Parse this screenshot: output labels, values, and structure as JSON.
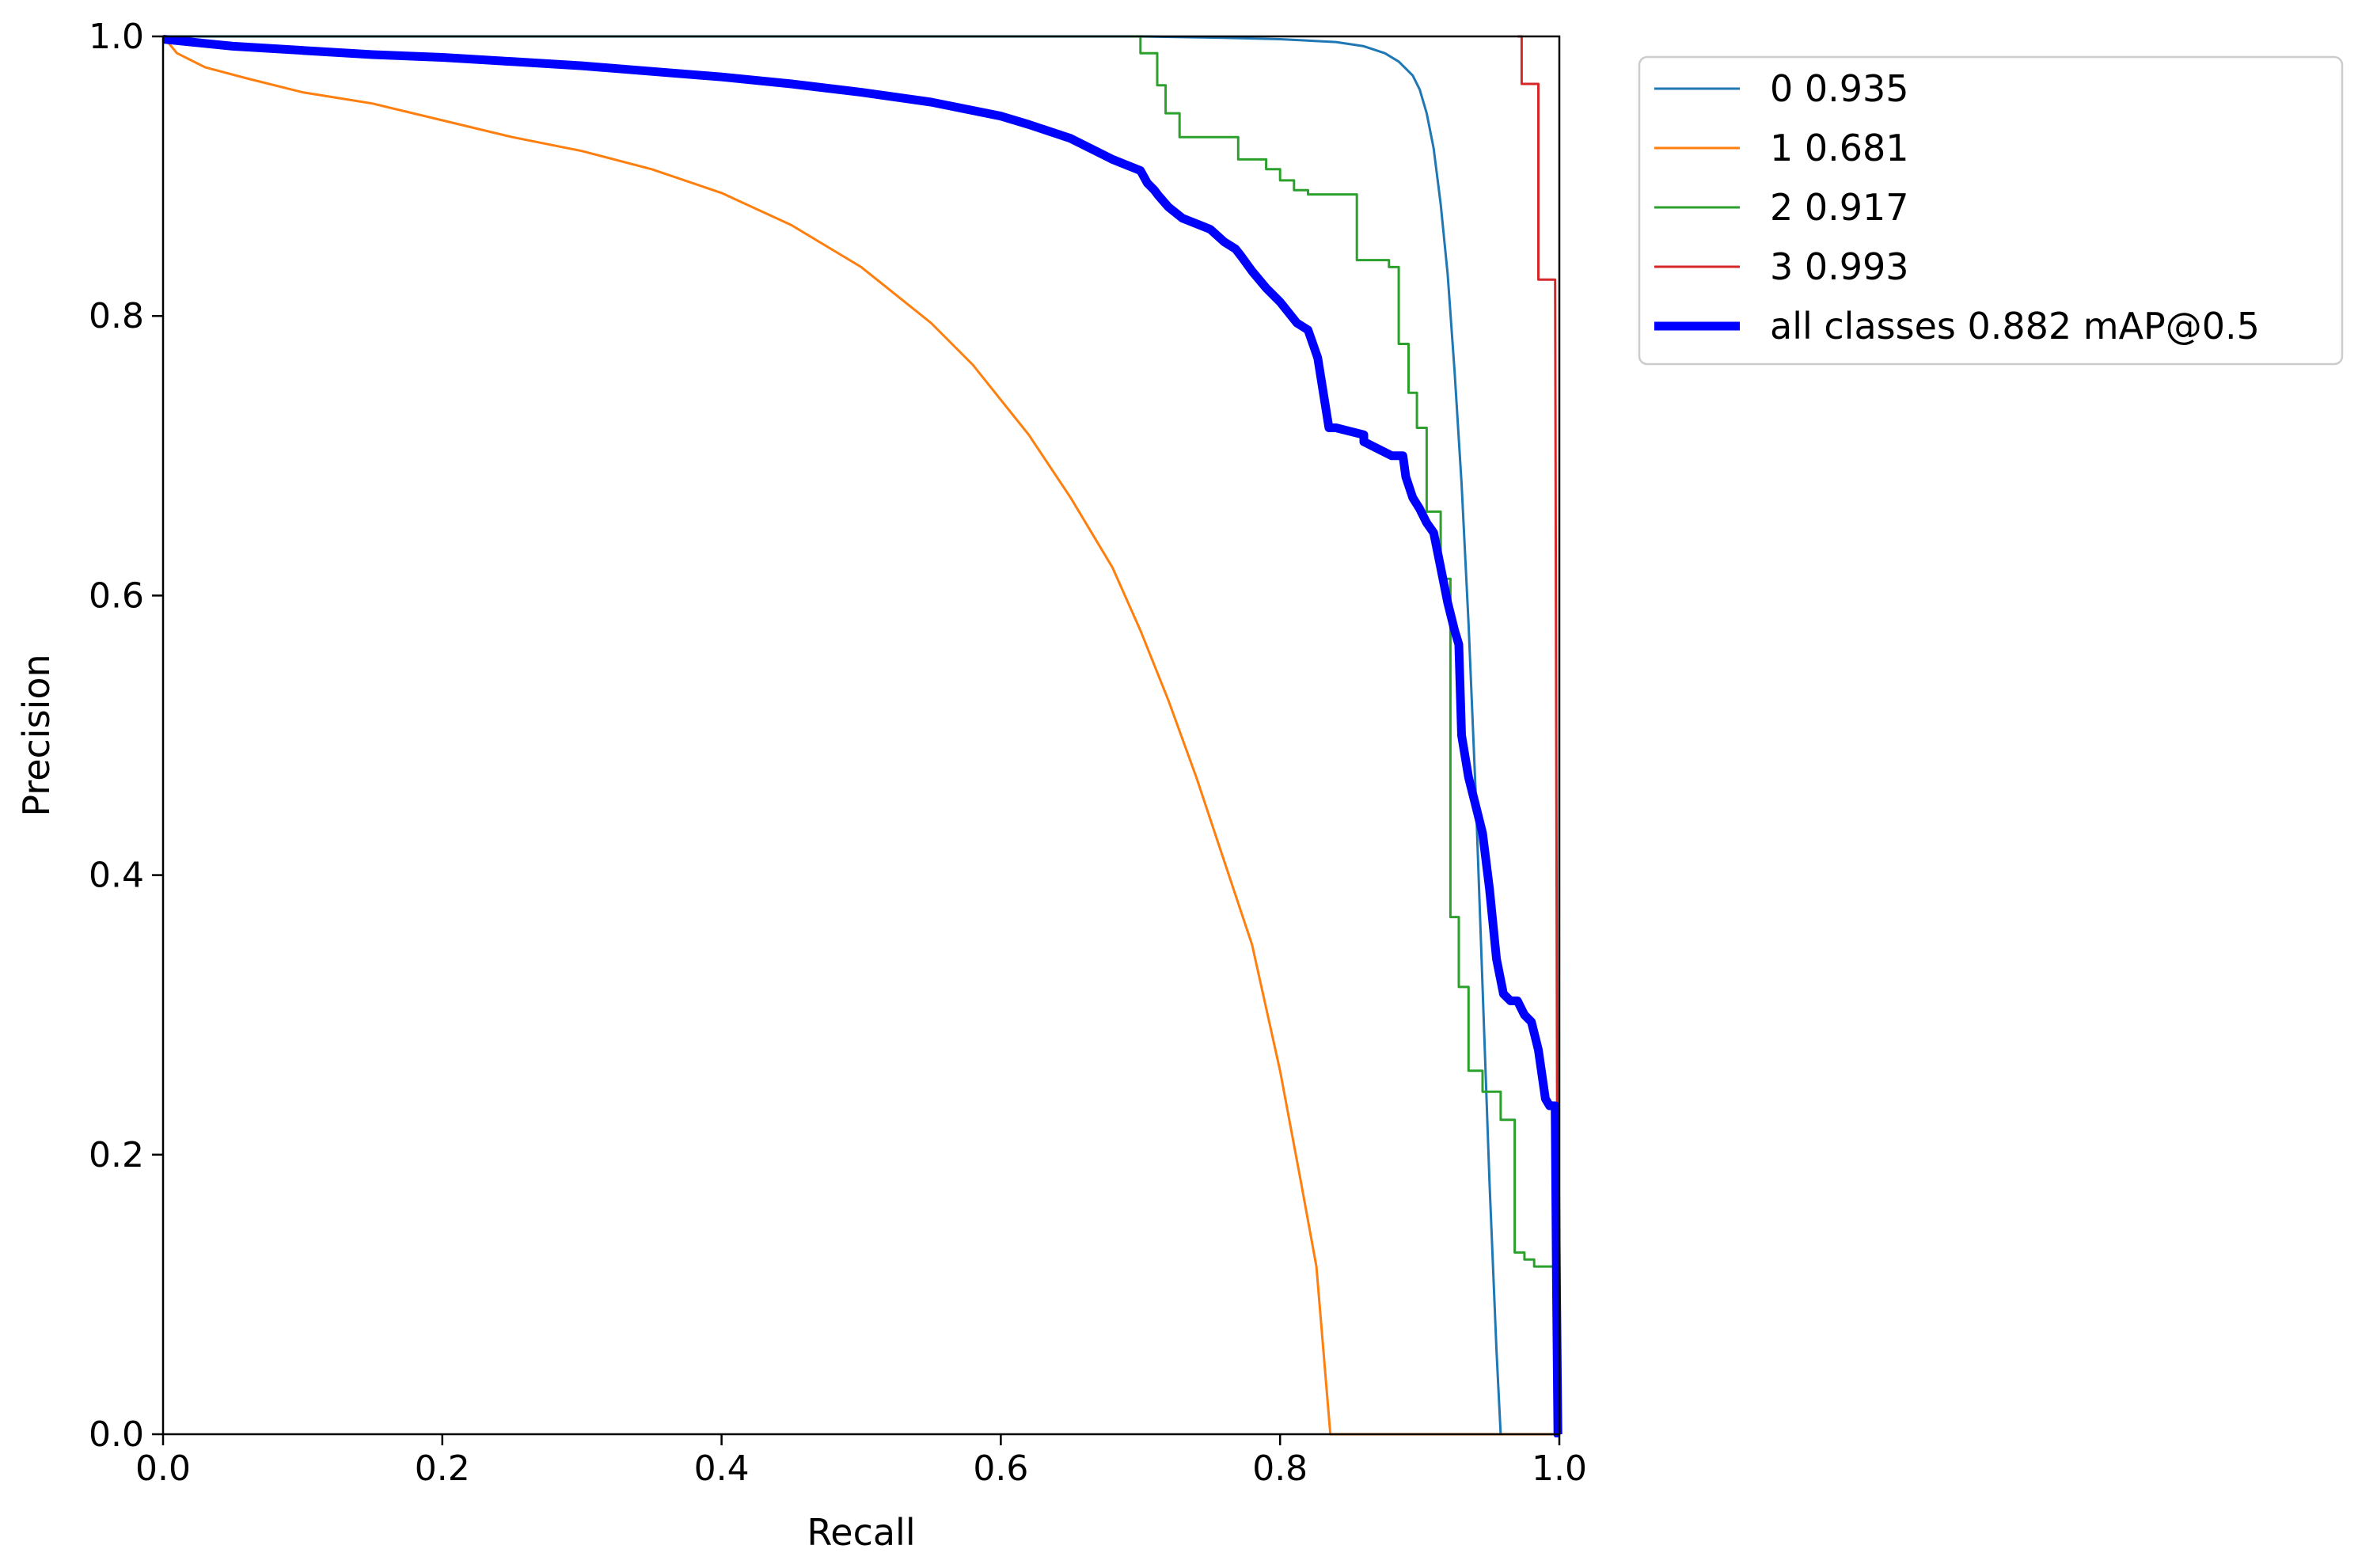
{
  "chart_data": {
    "type": "line",
    "title": "",
    "xlabel": "Recall",
    "ylabel": "Precision",
    "xlim": [
      0,
      1
    ],
    "ylim": [
      0,
      1
    ],
    "x_ticks": [
      "0.0",
      "0.2",
      "0.4",
      "0.6",
      "0.8",
      "1.0"
    ],
    "y_ticks": [
      "0.0",
      "0.2",
      "0.4",
      "0.6",
      "0.8",
      "1.0"
    ],
    "grid": false,
    "legend_position": "outside-top-right",
    "series": [
      {
        "name": "0 0.935",
        "color": "#1f77b4",
        "thick": false,
        "x": [
          0.0,
          0.7,
          0.76,
          0.8,
          0.84,
          0.86,
          0.875,
          0.885,
          0.895,
          0.9,
          0.905,
          0.91,
          0.915,
          0.92,
          0.925,
          0.93,
          0.935,
          0.94,
          0.945,
          0.95,
          0.955,
          0.958,
          0.958,
          1.0
        ],
        "y": [
          1.0,
          1.0,
          0.999,
          0.998,
          0.996,
          0.993,
          0.988,
          0.982,
          0.972,
          0.962,
          0.945,
          0.92,
          0.88,
          0.83,
          0.76,
          0.68,
          0.58,
          0.46,
          0.32,
          0.18,
          0.06,
          0.0,
          0.0,
          0.0
        ]
      },
      {
        "name": "1 0.681",
        "color": "#ff7f0e",
        "thick": false,
        "x": [
          0.0,
          0.01,
          0.03,
          0.06,
          0.1,
          0.15,
          0.2,
          0.25,
          0.3,
          0.35,
          0.4,
          0.45,
          0.5,
          0.55,
          0.58,
          0.6,
          0.62,
          0.65,
          0.68,
          0.7,
          0.72,
          0.74,
          0.76,
          0.78,
          0.8,
          0.815,
          0.826,
          0.836,
          0.836,
          1.0
        ],
        "y": [
          1.0,
          0.988,
          0.978,
          0.97,
          0.96,
          0.952,
          0.94,
          0.928,
          0.918,
          0.905,
          0.888,
          0.865,
          0.835,
          0.795,
          0.765,
          0.74,
          0.715,
          0.67,
          0.62,
          0.575,
          0.525,
          0.47,
          0.41,
          0.35,
          0.26,
          0.18,
          0.12,
          0.0,
          0.0,
          0.0
        ]
      },
      {
        "name": "2 0.917",
        "color": "#2ca02c",
        "thick": false,
        "x": [
          0.693,
          0.7,
          0.7,
          0.712,
          0.712,
          0.718,
          0.718,
          0.728,
          0.728,
          0.77,
          0.77,
          0.79,
          0.79,
          0.8,
          0.8,
          0.81,
          0.81,
          0.82,
          0.82,
          0.855,
          0.855,
          0.878,
          0.878,
          0.885,
          0.885,
          0.892,
          0.892,
          0.898,
          0.898,
          0.905,
          0.905,
          0.915,
          0.915,
          0.922,
          0.922,
          0.928,
          0.928,
          0.935,
          0.935,
          0.945,
          0.945,
          0.958,
          0.958,
          0.968,
          0.968,
          0.975,
          0.975,
          0.982,
          0.982,
          0.99,
          0.99,
          0.997,
          0.997
        ],
        "y": [
          1.0,
          1.0,
          0.988,
          0.988,
          0.965,
          0.965,
          0.945,
          0.945,
          0.928,
          0.928,
          0.912,
          0.912,
          0.905,
          0.905,
          0.897,
          0.897,
          0.89,
          0.89,
          0.887,
          0.887,
          0.84,
          0.84,
          0.835,
          0.835,
          0.78,
          0.78,
          0.745,
          0.745,
          0.72,
          0.72,
          0.66,
          0.66,
          0.612,
          0.612,
          0.37,
          0.37,
          0.32,
          0.32,
          0.26,
          0.26,
          0.245,
          0.245,
          0.225,
          0.225,
          0.13,
          0.13,
          0.125,
          0.125,
          0.12,
          0.12,
          0.12,
          0.12,
          0.0
        ]
      },
      {
        "name": "3 0.993",
        "color": "#d62728",
        "thick": false,
        "x": [
          0.97,
          0.97,
          0.973,
          0.973,
          0.985,
          0.985,
          0.997,
          0.997,
          0.999
        ],
        "y": [
          1.0,
          1.0,
          1.0,
          0.966,
          0.966,
          0.826,
          0.826,
          0.826,
          0.0
        ]
      },
      {
        "name": "all classes 0.882 mAP@0.5",
        "color": "#0000ff",
        "thick": true,
        "x": [
          0.0,
          0.05,
          0.1,
          0.15,
          0.2,
          0.25,
          0.3,
          0.35,
          0.4,
          0.45,
          0.5,
          0.55,
          0.6,
          0.62,
          0.65,
          0.68,
          0.69,
          0.7,
          0.705,
          0.71,
          0.713,
          0.72,
          0.73,
          0.75,
          0.76,
          0.768,
          0.772,
          0.78,
          0.79,
          0.8,
          0.812,
          0.82,
          0.827,
          0.835,
          0.84,
          0.86,
          0.86,
          0.88,
          0.888,
          0.89,
          0.895,
          0.9,
          0.905,
          0.91,
          0.915,
          0.92,
          0.925,
          0.928,
          0.93,
          0.935,
          0.94,
          0.945,
          0.95,
          0.955,
          0.96,
          0.965,
          0.97,
          0.975,
          0.98,
          0.985,
          0.99,
          0.993,
          0.997,
          0.998,
          0.999,
          1.0
        ],
        "y": [
          0.998,
          0.993,
          0.99,
          0.987,
          0.985,
          0.982,
          0.979,
          0.975,
          0.971,
          0.966,
          0.96,
          0.953,
          0.943,
          0.937,
          0.927,
          0.912,
          0.908,
          0.904,
          0.895,
          0.89,
          0.886,
          0.878,
          0.87,
          0.862,
          0.853,
          0.848,
          0.843,
          0.832,
          0.82,
          0.81,
          0.795,
          0.79,
          0.77,
          0.72,
          0.72,
          0.715,
          0.71,
          0.7,
          0.7,
          0.685,
          0.67,
          0.662,
          0.652,
          0.645,
          0.62,
          0.595,
          0.575,
          0.565,
          0.5,
          0.47,
          0.45,
          0.43,
          0.39,
          0.34,
          0.315,
          0.31,
          0.31,
          0.3,
          0.295,
          0.275,
          0.24,
          0.235,
          0.235,
          0.1,
          0.0,
          0.0
        ]
      }
    ]
  }
}
